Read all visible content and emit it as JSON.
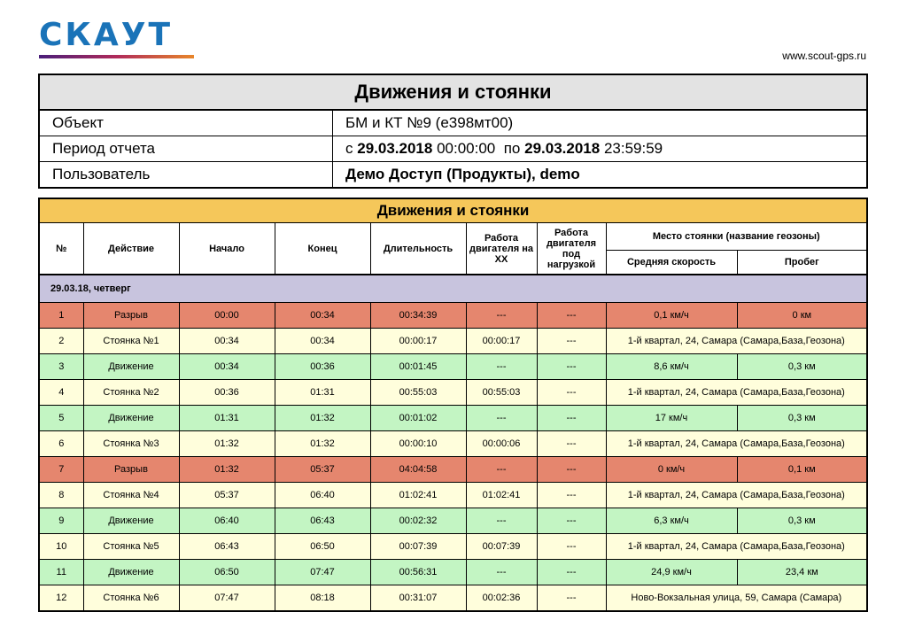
{
  "header": {
    "logo_text": "СКАУТ",
    "site_url": "www.scout-gps.ru",
    "colors": {
      "logo": "#1a73b8"
    }
  },
  "info": {
    "title": "Движения и стоянки",
    "object_label": "Объект",
    "object_value": "БМ и КТ №9 (е398мт00)",
    "period_label": "Период отчета",
    "period_from_prefix": "с",
    "period_from_date": "29.03.2018",
    "period_from_time": "00:00:00",
    "period_to_prefix": "по",
    "period_to_date": "29.03.2018",
    "period_to_time": "23:59:59",
    "user_label": "Пользователь",
    "user_value": "Демо Доступ (Продукты), demo"
  },
  "table": {
    "title": "Движения и стоянки",
    "columns": {
      "num": "№",
      "action": "Действие",
      "start": "Начало",
      "end": "Конец",
      "duration": "Длительность",
      "engine_idle": "Работа двигателя на ХХ",
      "engine_load": "Работа двигателя под нагрузкой",
      "place": "Место стоянки (название геозоны)",
      "avg_speed": "Средняя скорость",
      "mileage": "Пробег"
    },
    "date_group": "29.03.18, четверг",
    "row_colors": {
      "razryv": "#e5866e",
      "stop": "#fffedc",
      "move": "#c3f5c3"
    },
    "rows": [
      {
        "type": "razryv",
        "num": "1",
        "action": "Разрыв",
        "start": "00:00",
        "end": "00:34",
        "duration": "00:34:39",
        "idle": "---",
        "load": "---",
        "speed": "0,1 км/ч",
        "mileage": "0 км"
      },
      {
        "type": "stop",
        "num": "2",
        "action": "Стоянка №1",
        "start": "00:34",
        "end": "00:34",
        "duration": "00:00:17",
        "idle": "00:00:17",
        "load": "---",
        "place": "1-й квартал, 24, Самара (Самара,База,Геозона)"
      },
      {
        "type": "move",
        "num": "3",
        "action": "Движение",
        "start": "00:34",
        "end": "00:36",
        "duration": "00:01:45",
        "idle": "---",
        "load": "---",
        "speed": "8,6 км/ч",
        "mileage": "0,3 км"
      },
      {
        "type": "stop",
        "num": "4",
        "action": "Стоянка №2",
        "start": "00:36",
        "end": "01:31",
        "duration": "00:55:03",
        "idle": "00:55:03",
        "load": "---",
        "place": "1-й квартал, 24, Самара (Самара,База,Геозона)"
      },
      {
        "type": "move",
        "num": "5",
        "action": "Движение",
        "start": "01:31",
        "end": "01:32",
        "duration": "00:01:02",
        "idle": "---",
        "load": "---",
        "speed": "17 км/ч",
        "mileage": "0,3 км"
      },
      {
        "type": "stop",
        "num": "6",
        "action": "Стоянка №3",
        "start": "01:32",
        "end": "01:32",
        "duration": "00:00:10",
        "idle": "00:00:06",
        "load": "---",
        "place": "1-й квартал, 24, Самара (Самара,База,Геозона)"
      },
      {
        "type": "razryv",
        "num": "7",
        "action": "Разрыв",
        "start": "01:32",
        "end": "05:37",
        "duration": "04:04:58",
        "idle": "---",
        "load": "---",
        "speed": "0 км/ч",
        "mileage": "0,1 км"
      },
      {
        "type": "stop",
        "num": "8",
        "action": "Стоянка №4",
        "start": "05:37",
        "end": "06:40",
        "duration": "01:02:41",
        "idle": "01:02:41",
        "load": "---",
        "place": "1-й квартал, 24, Самара (Самара,База,Геозона)"
      },
      {
        "type": "move",
        "num": "9",
        "action": "Движение",
        "start": "06:40",
        "end": "06:43",
        "duration": "00:02:32",
        "idle": "---",
        "load": "---",
        "speed": "6,3 км/ч",
        "mileage": "0,3 км"
      },
      {
        "type": "stop",
        "num": "10",
        "action": "Стоянка №5",
        "start": "06:43",
        "end": "06:50",
        "duration": "00:07:39",
        "idle": "00:07:39",
        "load": "---",
        "place": "1-й квартал, 24, Самара (Самара,База,Геозона)"
      },
      {
        "type": "move",
        "num": "11",
        "action": "Движение",
        "start": "06:50",
        "end": "07:47",
        "duration": "00:56:31",
        "idle": "---",
        "load": "---",
        "speed": "24,9 км/ч",
        "mileage": "23,4 км"
      },
      {
        "type": "stop",
        "num": "12",
        "action": "Стоянка №6",
        "start": "07:47",
        "end": "08:18",
        "duration": "00:31:07",
        "idle": "00:02:36",
        "load": "---",
        "place": "Ново-Вокзальная улица, 59, Самара (Самара)"
      }
    ]
  }
}
